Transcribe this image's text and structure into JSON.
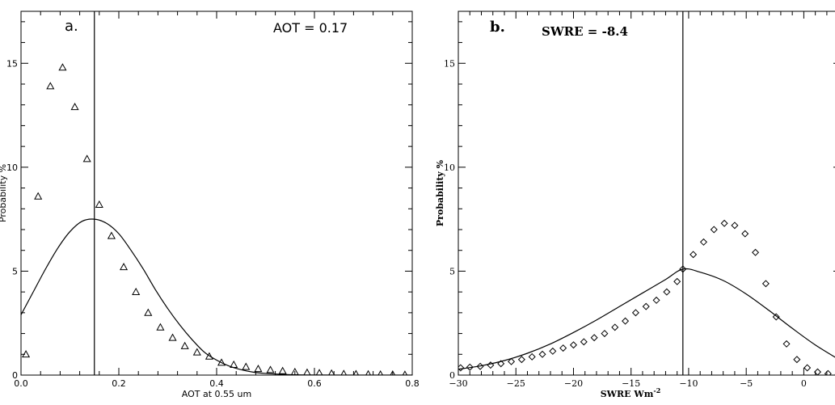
{
  "chart_data": [
    {
      "type": "scatter",
      "panel_label": "a.",
      "annotation": "AOT = 0.17",
      "xlabel": "AOT at 0.55 um",
      "ylabel": "Probability %",
      "xlim": [
        0.0,
        0.8
      ],
      "ylim": [
        0,
        17.5
      ],
      "xticks": [
        0.0,
        0.2,
        0.4,
        0.6,
        0.8
      ],
      "xtick_labels": [
        "0.0",
        "0.2",
        "0.4",
        "0.6",
        "0.8"
      ],
      "yticks": [
        0,
        5,
        10,
        15
      ],
      "ytick_labels": [
        "0",
        "5",
        "10",
        "15"
      ],
      "marker": "triangle",
      "vertical_line_x": 0.15,
      "points": [
        {
          "x": 0.01,
          "y": 1.0
        },
        {
          "x": 0.035,
          "y": 8.6
        },
        {
          "x": 0.06,
          "y": 13.9
        },
        {
          "x": 0.085,
          "y": 14.8
        },
        {
          "x": 0.11,
          "y": 12.9
        },
        {
          "x": 0.135,
          "y": 10.4
        },
        {
          "x": 0.16,
          "y": 8.2
        },
        {
          "x": 0.185,
          "y": 6.7
        },
        {
          "x": 0.21,
          "y": 5.2
        },
        {
          "x": 0.235,
          "y": 4.0
        },
        {
          "x": 0.26,
          "y": 3.0
        },
        {
          "x": 0.285,
          "y": 2.3
        },
        {
          "x": 0.31,
          "y": 1.8
        },
        {
          "x": 0.335,
          "y": 1.4
        },
        {
          "x": 0.36,
          "y": 1.1
        },
        {
          "x": 0.385,
          "y": 0.9
        },
        {
          "x": 0.41,
          "y": 0.6
        },
        {
          "x": 0.435,
          "y": 0.5
        },
        {
          "x": 0.46,
          "y": 0.4
        },
        {
          "x": 0.485,
          "y": 0.3
        },
        {
          "x": 0.51,
          "y": 0.25
        },
        {
          "x": 0.535,
          "y": 0.2
        },
        {
          "x": 0.56,
          "y": 0.15
        },
        {
          "x": 0.585,
          "y": 0.12
        },
        {
          "x": 0.61,
          "y": 0.1
        },
        {
          "x": 0.635,
          "y": 0.08
        },
        {
          "x": 0.66,
          "y": 0.06
        },
        {
          "x": 0.685,
          "y": 0.05
        },
        {
          "x": 0.71,
          "y": 0.04
        },
        {
          "x": 0.735,
          "y": 0.03
        },
        {
          "x": 0.76,
          "y": 0.03
        },
        {
          "x": 0.785,
          "y": 0.02
        }
      ],
      "curve": {
        "x": [
          0.0,
          0.025,
          0.05,
          0.075,
          0.1,
          0.125,
          0.15,
          0.175,
          0.2,
          0.225,
          0.25,
          0.275,
          0.3,
          0.325,
          0.35,
          0.375,
          0.4,
          0.425,
          0.45,
          0.475,
          0.5,
          0.55,
          0.6,
          0.7,
          0.8
        ],
        "y": [
          2.9,
          4.0,
          5.1,
          6.1,
          6.9,
          7.4,
          7.5,
          7.3,
          6.8,
          6.0,
          5.1,
          4.1,
          3.2,
          2.4,
          1.7,
          1.1,
          0.72,
          0.44,
          0.26,
          0.14,
          0.08,
          0.02,
          0.005,
          0.0,
          0.0
        ]
      }
    },
    {
      "type": "scatter",
      "panel_label": "b.",
      "annotation": "SWRE = -8.4",
      "xlabel": "SWRE Wm",
      "xlabel_superscript": "-2",
      "ylabel": "Probability %",
      "xlim": [
        -30,
        3.2
      ],
      "ylim": [
        0,
        17.5
      ],
      "xticks": [
        -30,
        -25,
        -20,
        -15,
        -10,
        -5,
        0
      ],
      "xtick_labels": [
        "−30",
        "−25",
        "−20",
        "−15",
        "−10",
        "−5",
        "0"
      ],
      "yticks": [
        0,
        5,
        10,
        15
      ],
      "ytick_labels": [
        "0",
        "5",
        "10",
        "15"
      ],
      "marker": "diamond",
      "vertical_line_x": -10.5,
      "points": [
        {
          "x": -29.8,
          "y": 0.35
        },
        {
          "x": -29.0,
          "y": 0.38
        },
        {
          "x": -28.1,
          "y": 0.42
        },
        {
          "x": -27.2,
          "y": 0.48
        },
        {
          "x": -26.3,
          "y": 0.55
        },
        {
          "x": -25.4,
          "y": 0.65
        },
        {
          "x": -24.5,
          "y": 0.75
        },
        {
          "x": -23.6,
          "y": 0.88
        },
        {
          "x": -22.7,
          "y": 1.0
        },
        {
          "x": -21.8,
          "y": 1.15
        },
        {
          "x": -20.9,
          "y": 1.3
        },
        {
          "x": -20.0,
          "y": 1.45
        },
        {
          "x": -19.1,
          "y": 1.6
        },
        {
          "x": -18.2,
          "y": 1.8
        },
        {
          "x": -17.3,
          "y": 2.0
        },
        {
          "x": -16.4,
          "y": 2.3
        },
        {
          "x": -15.5,
          "y": 2.6
        },
        {
          "x": -14.6,
          "y": 3.0
        },
        {
          "x": -13.7,
          "y": 3.3
        },
        {
          "x": -12.8,
          "y": 3.6
        },
        {
          "x": -11.9,
          "y": 4.0
        },
        {
          "x": -11.0,
          "y": 4.5
        },
        {
          "x": -10.5,
          "y": 5.1
        },
        {
          "x": -9.6,
          "y": 5.8
        },
        {
          "x": -8.7,
          "y": 6.4
        },
        {
          "x": -7.8,
          "y": 7.0
        },
        {
          "x": -6.9,
          "y": 7.3
        },
        {
          "x": -6.0,
          "y": 7.2
        },
        {
          "x": -5.1,
          "y": 6.8
        },
        {
          "x": -4.2,
          "y": 5.9
        },
        {
          "x": -3.3,
          "y": 4.4
        },
        {
          "x": -2.4,
          "y": 2.8
        },
        {
          "x": -1.5,
          "y": 1.5
        },
        {
          "x": -0.6,
          "y": 0.75
        },
        {
          "x": 0.3,
          "y": 0.35
        },
        {
          "x": 1.2,
          "y": 0.15
        },
        {
          "x": 2.1,
          "y": 0.07
        },
        {
          "x": 3.0,
          "y": 0.04
        }
      ],
      "curve": {
        "x": [
          -30,
          -28,
          -26,
          -24,
          -22,
          -20,
          -18,
          -16,
          -14,
          -12,
          -10.5,
          -9,
          -7,
          -5,
          -3,
          -1,
          1,
          3.2
        ],
        "y": [
          0.28,
          0.45,
          0.7,
          1.05,
          1.5,
          2.05,
          2.65,
          3.3,
          3.95,
          4.6,
          5.1,
          4.95,
          4.55,
          3.9,
          3.1,
          2.25,
          1.45,
          0.7
        ]
      }
    }
  ]
}
